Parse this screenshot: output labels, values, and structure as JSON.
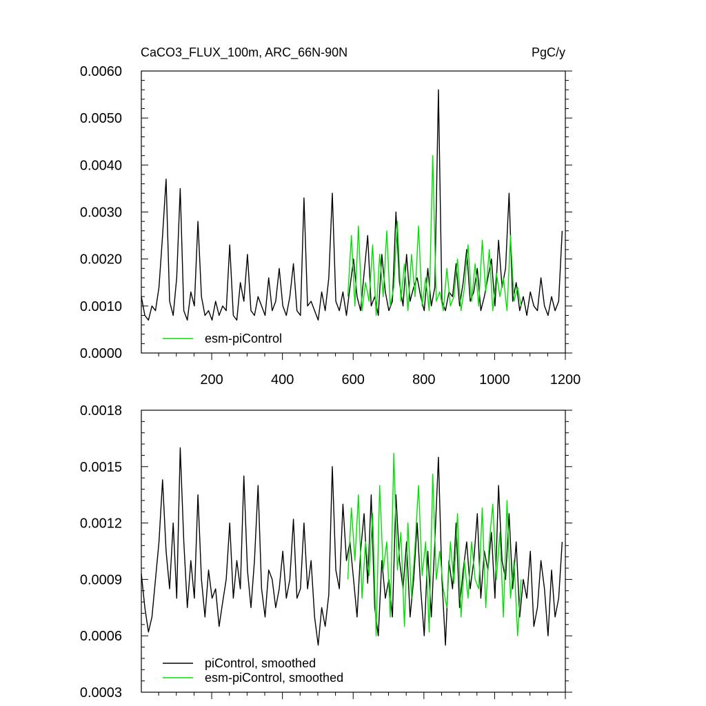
{
  "chart_data": [
    {
      "type": "line",
      "title": "CaCO3_FLUX_100m, ARC_66N-90N",
      "units": "PgC/y",
      "xlim": [
        1,
        1200
      ],
      "ylim": [
        0.0,
        0.006
      ],
      "xticks": [
        200,
        400,
        600,
        800,
        1000,
        1200
      ],
      "xtick_labels": [
        "200",
        "400",
        "600",
        "800",
        "1000",
        "1200"
      ],
      "yticks": [
        0.0,
        0.001,
        0.002,
        0.003,
        0.004,
        0.005,
        0.006
      ],
      "ytick_labels": [
        "0.0000",
        "0.0010",
        "0.0020",
        "0.0030",
        "0.0040",
        "0.0050",
        "0.0060"
      ],
      "grid": false,
      "legend_position": "bottom-left",
      "legend": [
        "esm-piControl"
      ],
      "series": [
        {
          "color": "#000000",
          "x_start": 1,
          "x_step": 10,
          "y": [
            0.0012,
            0.0008,
            0.0007,
            0.001,
            0.0009,
            0.0014,
            0.0025,
            0.0037,
            0.0011,
            0.0008,
            0.0016,
            0.0035,
            0.0009,
            0.0007,
            0.0013,
            0.001,
            0.0028,
            0.0012,
            0.0008,
            0.0009,
            0.0007,
            0.0011,
            0.0008,
            0.001,
            0.0009,
            0.0023,
            0.0008,
            0.0007,
            0.0015,
            0.0011,
            0.0021,
            0.0009,
            0.0008,
            0.0012,
            0.001,
            0.0008,
            0.0016,
            0.0009,
            0.0011,
            0.0018,
            0.001,
            0.0008,
            0.0012,
            0.0019,
            0.0009,
            0.0008,
            0.0033,
            0.001,
            0.0011,
            0.0009,
            0.0007,
            0.0013,
            0.0009,
            0.0016,
            0.0034,
            0.0011,
            0.0009,
            0.0013,
            0.0008,
            0.0014,
            0.002,
            0.0012,
            0.0009,
            0.0017,
            0.0025,
            0.001,
            0.0012,
            0.0008,
            0.0021,
            0.0013,
            0.0009,
            0.0011,
            0.003,
            0.0015,
            0.001,
            0.0021,
            0.0011,
            0.0014,
            0.0016,
            0.0012,
            0.0009,
            0.0018,
            0.001,
            0.0014,
            0.0056,
            0.0011,
            0.0009,
            0.0013,
            0.0012,
            0.0019,
            0.001,
            0.0015,
            0.0022,
            0.0011,
            0.0013,
            0.0018,
            0.0009,
            0.0012,
            0.0016,
            0.002,
            0.001,
            0.0024,
            0.0014,
            0.0018,
            0.0034,
            0.0011,
            0.0015,
            0.0009,
            0.0012,
            0.0008,
            0.0013,
            0.001,
            0.0009,
            0.0016,
            0.001,
            0.0008,
            0.0012,
            0.0009,
            0.0011,
            0.0026
          ]
        },
        {
          "name": "esm-piControl",
          "color": "#00e000",
          "x_start": 585,
          "x_step": 10,
          "y": [
            0.0012,
            0.0025,
            0.001,
            0.0027,
            0.0009,
            0.0015,
            0.0011,
            0.0023,
            0.0008,
            0.0021,
            0.0012,
            0.0026,
            0.001,
            0.0014,
            0.0028,
            0.0011,
            0.0019,
            0.0009,
            0.0021,
            0.0012,
            0.0027,
            0.001,
            0.0016,
            0.0009,
            0.0042,
            0.0011,
            0.0013,
            0.0009,
            0.0018,
            0.001,
            0.0012,
            0.002,
            0.0009,
            0.0014,
            0.0023,
            0.0011,
            0.0019,
            0.001,
            0.0024,
            0.0013,
            0.0022,
            0.0009,
            0.0017,
            0.0012,
            0.0016,
            0.0009,
            0.0025,
            0.0011,
            0.0014,
            0.001
          ]
        }
      ]
    },
    {
      "type": "line",
      "xlim": [
        1,
        1200
      ],
      "ylim": [
        0.0003,
        0.0018
      ],
      "yticks": [
        0.0003,
        0.0006,
        0.0009,
        0.0012,
        0.0015,
        0.0018
      ],
      "ytick_labels": [
        "0.0003",
        "0.0006",
        "0.0009",
        "0.0012",
        "0.0015",
        "0.0018"
      ],
      "grid": false,
      "legend_position": "bottom-left",
      "legend": [
        "piControl, smoothed",
        "esm-piControl, smoothed"
      ],
      "series": [
        {
          "name": "piControl, smoothed",
          "color": "#000000",
          "x_start": 1,
          "x_step": 10,
          "y": [
            0.00093,
            0.00075,
            0.00062,
            0.0007,
            0.0009,
            0.0011,
            0.00143,
            0.00105,
            0.00085,
            0.0012,
            0.0008,
            0.0016,
            0.0011,
            0.00075,
            0.001,
            0.0008,
            0.00135,
            0.0009,
            0.0007,
            0.00095,
            0.0008,
            0.00085,
            0.00065,
            0.00078,
            0.0009,
            0.0012,
            0.0008,
            0.001,
            0.00085,
            0.00145,
            0.00095,
            0.00075,
            0.001,
            0.0014,
            0.00085,
            0.0007,
            0.00095,
            0.0009,
            0.00075,
            0.00085,
            0.00105,
            0.0008,
            0.0009,
            0.00122,
            0.0008,
            0.00085,
            0.0012,
            0.00085,
            0.001,
            0.0007,
            0.00055,
            0.00075,
            0.00065,
            0.00082,
            0.0015,
            0.00095,
            0.00085,
            0.0013,
            0.001,
            0.0011,
            0.0009,
            0.0007,
            0.00105,
            0.00125,
            0.00088,
            0.00135,
            0.00075,
            0.0006,
            0.001,
            0.0008,
            0.0009,
            0.0007,
            0.00135,
            0.001,
            0.00085,
            0.0011,
            0.0007,
            0.0009,
            0.0012,
            0.00085,
            0.0006,
            0.00105,
            0.0007,
            0.0011,
            0.00155,
            0.0009,
            0.00055,
            0.001,
            0.00085,
            0.0012,
            0.00075,
            0.00095,
            0.0011,
            0.00085,
            0.001,
            0.00125,
            0.0008,
            0.00105,
            0.00095,
            0.00115,
            0.0008,
            0.0014,
            0.001,
            0.0009,
            0.00125,
            0.00085,
            0.0011,
            0.0007,
            0.0009,
            0.0008,
            0.00105,
            0.00065,
            0.00075,
            0.001,
            0.00085,
            0.0006,
            0.00095,
            0.0007,
            0.0008,
            0.0011
          ]
        },
        {
          "name": "esm-piControl, smoothed",
          "color": "#00e000",
          "x_start": 585,
          "x_step": 10,
          "y": [
            0.0009,
            0.00128,
            0.001,
            0.00135,
            0.0008,
            0.0011,
            0.00092,
            0.00125,
            0.0006,
            0.0014,
            0.00095,
            0.0011,
            0.0007,
            0.00157,
            0.00095,
            0.00115,
            0.00065,
            0.0012,
            0.0008,
            0.00108,
            0.0014,
            0.00092,
            0.0011,
            0.00062,
            0.00146,
            0.0009,
            0.00105,
            0.00085,
            0.00075,
            0.0011,
            0.00088,
            0.00125,
            0.0007,
            0.001,
            0.0008,
            0.0011,
            0.0009,
            0.00085,
            0.00128,
            0.00075,
            0.0011,
            0.0013,
            0.0009,
            0.00115,
            0.0007,
            0.00132,
            0.0008,
            0.001,
            0.0006,
            0.0009
          ]
        }
      ]
    }
  ]
}
